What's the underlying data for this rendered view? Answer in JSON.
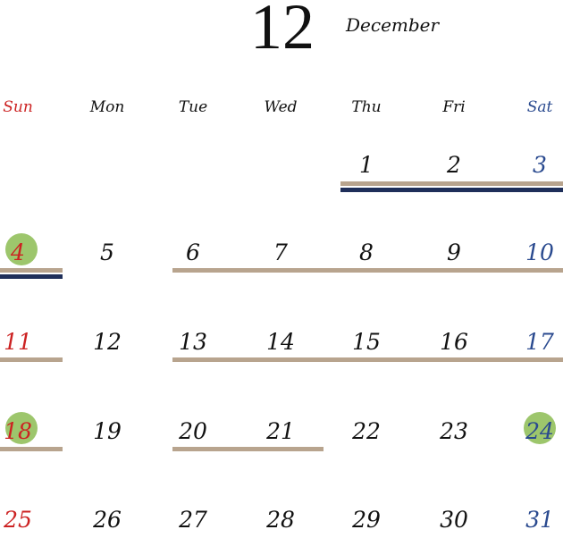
{
  "header": {
    "month_number": "12",
    "month_name": "December"
  },
  "colors": {
    "text": "#111111",
    "sunday": "#cc2222",
    "saturday": "#2a4a8f",
    "tan_bar": "#b8a48e",
    "navy_bar": "#1f2f5a",
    "dot": "#9dc66c"
  },
  "weekdays": [
    {
      "label": "Sun",
      "kind": "sunday"
    },
    {
      "label": "Mon",
      "kind": "weekday"
    },
    {
      "label": "Tue",
      "kind": "weekday"
    },
    {
      "label": "Wed",
      "kind": "weekday"
    },
    {
      "label": "Thu",
      "kind": "weekday"
    },
    {
      "label": "Fri",
      "kind": "weekday"
    },
    {
      "label": "Sat",
      "kind": "saturday"
    }
  ],
  "days": [
    {
      "n": "1",
      "col": 4,
      "row": 0
    },
    {
      "n": "2",
      "col": 5,
      "row": 0
    },
    {
      "n": "3",
      "col": 6,
      "row": 0
    },
    {
      "n": "4",
      "col": 0,
      "row": 1,
      "dot": true
    },
    {
      "n": "5",
      "col": 1,
      "row": 1
    },
    {
      "n": "6",
      "col": 2,
      "row": 1
    },
    {
      "n": "7",
      "col": 3,
      "row": 1
    },
    {
      "n": "8",
      "col": 4,
      "row": 1
    },
    {
      "n": "9",
      "col": 5,
      "row": 1
    },
    {
      "n": "10",
      "col": 6,
      "row": 1
    },
    {
      "n": "11",
      "col": 0,
      "row": 2
    },
    {
      "n": "12",
      "col": 1,
      "row": 2
    },
    {
      "n": "13",
      "col": 2,
      "row": 2
    },
    {
      "n": "14",
      "col": 3,
      "row": 2
    },
    {
      "n": "15",
      "col": 4,
      "row": 2
    },
    {
      "n": "16",
      "col": 5,
      "row": 2
    },
    {
      "n": "17",
      "col": 6,
      "row": 2
    },
    {
      "n": "18",
      "col": 0,
      "row": 3,
      "dot": true
    },
    {
      "n": "19",
      "col": 1,
      "row": 3
    },
    {
      "n": "20",
      "col": 2,
      "row": 3
    },
    {
      "n": "21",
      "col": 3,
      "row": 3
    },
    {
      "n": "22",
      "col": 4,
      "row": 3
    },
    {
      "n": "23",
      "col": 5,
      "row": 3
    },
    {
      "n": "24",
      "col": 6,
      "row": 3,
      "dot": true
    },
    {
      "n": "25",
      "col": 0,
      "row": 4
    },
    {
      "n": "26",
      "col": 1,
      "row": 4
    },
    {
      "n": "27",
      "col": 2,
      "row": 4
    },
    {
      "n": "28",
      "col": 3,
      "row": 4
    },
    {
      "n": "29",
      "col": 4,
      "row": 4
    },
    {
      "n": "30",
      "col": 5,
      "row": 4
    },
    {
      "n": "31",
      "col": 6,
      "row": 4
    }
  ],
  "bars": [
    {
      "row": 0,
      "from_col": 4,
      "to_col": 6,
      "color": "tan_bar"
    },
    {
      "row": 0,
      "from_col": 4,
      "to_col": 6,
      "color": "navy_bar",
      "level": 2
    },
    {
      "row": 1,
      "from_col": 0,
      "to_col": 0,
      "color": "tan_bar"
    },
    {
      "row": 1,
      "from_col": 0,
      "to_col": 0,
      "color": "navy_bar",
      "level": 2
    },
    {
      "row": 1,
      "from_col": 2,
      "to_col": 6,
      "color": "tan_bar"
    },
    {
      "row": 2,
      "from_col": 0,
      "to_col": 0,
      "color": "tan_bar"
    },
    {
      "row": 2,
      "from_col": 2,
      "to_col": 6,
      "color": "tan_bar"
    },
    {
      "row": 3,
      "from_col": 0,
      "to_col": 0,
      "color": "tan_bar"
    },
    {
      "row": 3,
      "from_col": 2,
      "to_col": 3,
      "color": "tan_bar"
    }
  ]
}
